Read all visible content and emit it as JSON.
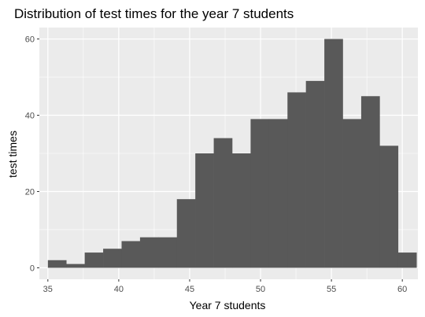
{
  "chart_data": {
    "type": "bar",
    "title": "Distribution of test times for the year 7 students",
    "xlabel": "Year 7 students",
    "ylabel": "test times",
    "xlim": [
      34.4,
      61.1
    ],
    "ylim": [
      -3,
      63
    ],
    "x_ticks": [
      35,
      40,
      45,
      50,
      55,
      60
    ],
    "y_ticks": [
      0,
      20,
      40,
      60
    ],
    "bin_width": 1.3,
    "bins": [
      {
        "x0": 35.0,
        "x1": 36.3,
        "count": 2
      },
      {
        "x0": 36.3,
        "x1": 37.6,
        "count": 1
      },
      {
        "x0": 37.6,
        "x1": 38.9,
        "count": 4
      },
      {
        "x0": 38.9,
        "x1": 40.2,
        "count": 5
      },
      {
        "x0": 40.2,
        "x1": 41.5,
        "count": 7
      },
      {
        "x0": 41.5,
        "x1": 42.8,
        "count": 8
      },
      {
        "x0": 42.8,
        "x1": 44.1,
        "count": 8
      },
      {
        "x0": 44.1,
        "x1": 45.4,
        "count": 18
      },
      {
        "x0": 45.4,
        "x1": 46.7,
        "count": 30
      },
      {
        "x0": 46.7,
        "x1": 48.0,
        "count": 34
      },
      {
        "x0": 48.0,
        "x1": 49.3,
        "count": 30
      },
      {
        "x0": 49.3,
        "x1": 50.6,
        "count": 39
      },
      {
        "x0": 50.6,
        "x1": 51.9,
        "count": 39
      },
      {
        "x0": 51.9,
        "x1": 53.2,
        "count": 46
      },
      {
        "x0": 53.2,
        "x1": 54.5,
        "count": 49
      },
      {
        "x0": 54.5,
        "x1": 55.8,
        "count": 60
      },
      {
        "x0": 55.8,
        "x1": 57.1,
        "count": 39
      },
      {
        "x0": 57.1,
        "x1": 58.4,
        "count": 45
      },
      {
        "x0": 58.4,
        "x1": 59.7,
        "count": 32
      },
      {
        "x0": 59.7,
        "x1": 61.0,
        "count": 4
      }
    ],
    "grid": true,
    "colors": {
      "bar": "#595959",
      "panel": "#ebebeb",
      "grid": "#ffffff"
    }
  }
}
